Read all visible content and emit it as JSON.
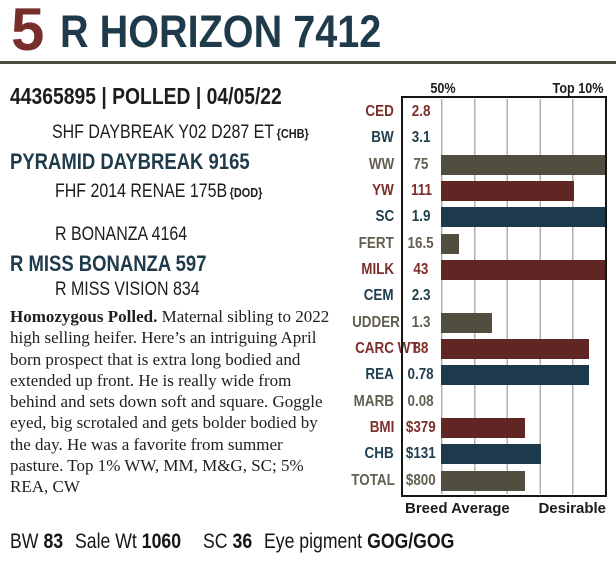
{
  "header": {
    "lot_number": "5",
    "title": "R HORIZON 7412"
  },
  "registration": {
    "display": "44365895 | POLLED | 04/05/22"
  },
  "pedigree": {
    "sire_line": [
      {
        "name": "SHF DAYBREAK Y02 D287 ET",
        "tag": "{CHB}"
      },
      {
        "name": "PYRAMID DAYBREAK 9165"
      },
      {
        "name": "FHF 2014 RENAE 175B",
        "tag": "{DOD}"
      }
    ],
    "dam_line": [
      {
        "name": "R BONANZA 4164"
      },
      {
        "name": "R MISS BONANZA 597"
      },
      {
        "name": "R MISS VISION 834"
      }
    ]
  },
  "description": {
    "lead": "Homozygous Polled.",
    "body": " Maternal sibling to 2022 high selling heifer. Here’s an intriguing April born prospect that is extra long bodied and extended up front. He is really wide from behind and sets down soft and square. Goggle eyed, big scrotaled and gets bolder bodied by the day. He was a favorite from summer pasture. Top 1% WW, MM, M&G, SC; 5% REA, CW"
  },
  "stats": [
    {
      "label": "BW",
      "value": "83"
    },
    {
      "label": "Sale Wt",
      "value": "1060"
    },
    {
      "label": "SC",
      "value": "36"
    },
    {
      "label": "Eye pigment",
      "value": "GOG/GOG"
    }
  ],
  "chart_data": {
    "type": "bar",
    "orientation": "horizontal",
    "top_labels": {
      "left": "50%",
      "right": "Top 10%"
    },
    "bottom_labels": {
      "left": "Breed Average",
      "right": "Desirable"
    },
    "axis_note": "Bars start at breed-average (50th percentile) line; right edge is most desirable; gridlines every 10 percentile points",
    "bar_colors": {
      "red": "#602623",
      "navy": "#1d3a4d",
      "olive": "#514e3f"
    },
    "text_colors": {
      "red": "#7c2f2a",
      "navy": "#21404f",
      "olive": "#625e50"
    },
    "rows": [
      {
        "label": "CED",
        "value": "2.8",
        "bar_pct": 0,
        "color": "red"
      },
      {
        "label": "BW",
        "value": "3.1",
        "bar_pct": 0,
        "color": "navy"
      },
      {
        "label": "WW",
        "value": "75",
        "bar_pct": 100,
        "color": "olive"
      },
      {
        "label": "YW",
        "value": "111",
        "bar_pct": 81,
        "color": "red"
      },
      {
        "label": "SC",
        "value": "1.9",
        "bar_pct": 100,
        "color": "navy"
      },
      {
        "label": "FERT",
        "value": "16.5",
        "bar_pct": 11,
        "color": "olive"
      },
      {
        "label": "MILK",
        "value": "43",
        "bar_pct": 100,
        "color": "red"
      },
      {
        "label": "CEM",
        "value": "2.3",
        "bar_pct": 0,
        "color": "navy"
      },
      {
        "label": "UDDER",
        "value": "1.3",
        "bar_pct": 31,
        "color": "olive"
      },
      {
        "label": "CARC WT",
        "value": "88",
        "bar_pct": 90,
        "color": "red"
      },
      {
        "label": "REA",
        "value": "0.78",
        "bar_pct": 90,
        "color": "navy"
      },
      {
        "label": "MARB",
        "value": "0.08",
        "bar_pct": 0,
        "color": "olive"
      },
      {
        "label": "BMI",
        "value": "$379",
        "bar_pct": 51,
        "color": "red"
      },
      {
        "label": "CHB",
        "value": "$131",
        "bar_pct": 61,
        "color": "navy"
      },
      {
        "label": "TOTAL",
        "value": "$800",
        "bar_pct": 51,
        "color": "olive"
      }
    ]
  }
}
